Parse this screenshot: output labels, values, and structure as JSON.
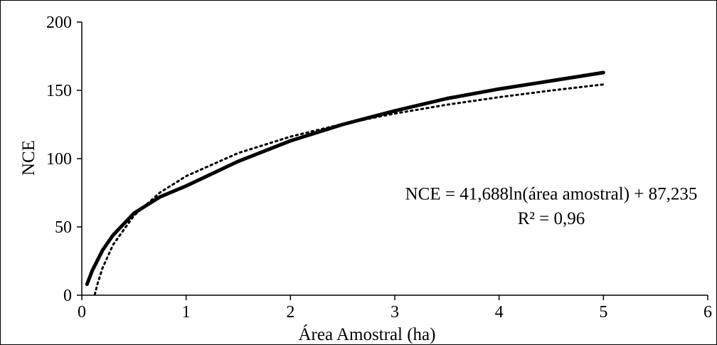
{
  "chart_data": {
    "type": "line",
    "xlabel": "Área Amostral (ha)",
    "ylabel": "NCE",
    "xlim": [
      0,
      6
    ],
    "ylim": [
      0,
      200
    ],
    "x_ticks": [
      0,
      1,
      2,
      3,
      4,
      5,
      6
    ],
    "y_ticks": [
      0,
      50,
      100,
      150,
      200
    ],
    "grid": false,
    "legend": "none",
    "series": [
      {
        "style": "solid",
        "color": "#000000",
        "x": [
          0.05,
          0.1,
          0.2,
          0.3,
          0.5,
          0.75,
          1.0,
          1.5,
          2.0,
          2.5,
          3.0,
          3.5,
          4.0,
          4.5,
          5.0
        ],
        "y": [
          8,
          18,
          33,
          44,
          60,
          72,
          80,
          98,
          113,
          125,
          135,
          144,
          151,
          157,
          163
        ]
      },
      {
        "style": "dotted",
        "color": "#000000",
        "x": [
          0.125,
          0.15,
          0.2,
          0.3,
          0.5,
          0.75,
          1.0,
          1.5,
          2.0,
          2.5,
          3.0,
          3.5,
          4.0,
          4.5,
          5.0
        ],
        "y": [
          0.5,
          8.1,
          20.1,
          37.0,
          58.3,
          75.2,
          87.2,
          104.1,
          116.1,
          125.4,
          133.0,
          139.5,
          145.0,
          149.9,
          154.3
        ]
      }
    ],
    "annotations": [
      {
        "text": "NCE = 41,688ln(área amostral) + 87,235",
        "x": 4.5,
        "y": 70
      },
      {
        "text": "R² = 0,96",
        "x": 4.5,
        "y": 52
      }
    ]
  }
}
